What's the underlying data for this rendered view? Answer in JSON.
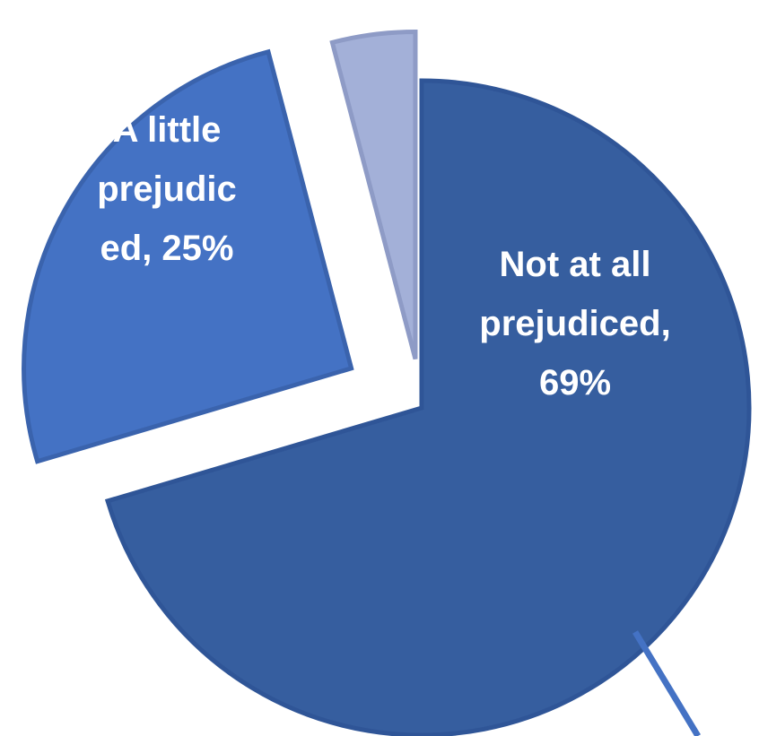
{
  "chart_data": {
    "type": "pie",
    "title": "",
    "slices": [
      {
        "category": "Not at all prejudiced",
        "value": 69,
        "label_lines": [
          "Not at all",
          "prejudiced,",
          "69%"
        ],
        "color": "#365E9F",
        "edge_color": "#2F5597"
      },
      {
        "category": "A little prejudiced",
        "value": 25,
        "label_lines": [
          "A little",
          "prejudic",
          "ed, 25%"
        ],
        "color": "#4472C4",
        "edge_color": "#3A63AD"
      },
      {
        "category": "",
        "value": 4,
        "label_lines": [],
        "color": "#A3B0D8",
        "edge_color": "#8E9BC6"
      }
    ],
    "exploded": true,
    "start_angle": "12 o'clock",
    "direction": "clockwise",
    "leader_line_color": "#4472C4"
  }
}
